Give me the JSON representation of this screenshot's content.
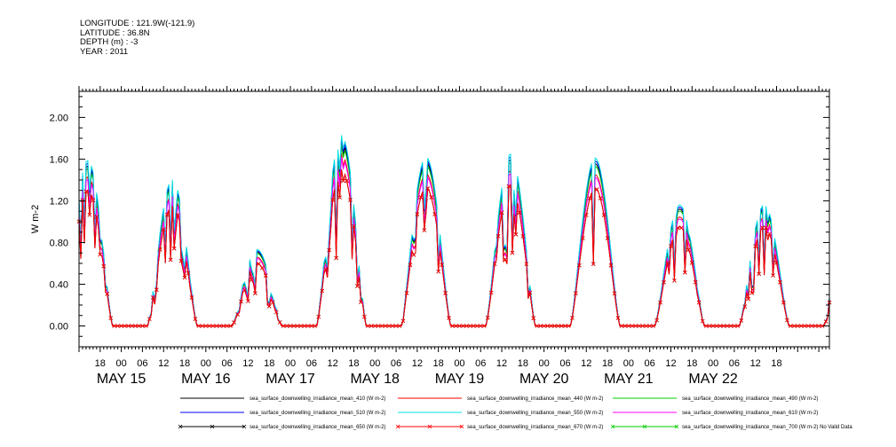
{
  "header": {
    "longitude": "LONGITUDE : 121.9W(-121.9)",
    "latitude": "LATITUDE : 36.8N",
    "depth": "DEPTH (m) : -3",
    "year": "YEAR : 2011"
  },
  "chart_data": {
    "type": "line",
    "ylabel": "W m-2",
    "ylim": [
      -0.2,
      2.25
    ],
    "yticks": [
      "0.00",
      "0.40",
      "0.80",
      "1.20",
      "1.60",
      "2.00"
    ],
    "ytick_values": [
      0,
      0.4,
      0.8,
      1.2,
      1.6,
      2.0
    ],
    "xlim_hours": [
      -6,
      207
    ],
    "hour_ticks": [
      "18",
      "00",
      "06",
      "12",
      "18",
      "00",
      "06",
      "12",
      "18",
      "00",
      "06",
      "12",
      "18",
      "00",
      "06",
      "12",
      "18",
      "00",
      "06",
      "12",
      "18",
      "00",
      "06",
      "12",
      "18",
      "00",
      "06",
      "12",
      "18",
      "00",
      "06",
      "12",
      "18"
    ],
    "date_labels": [
      "MAY 15",
      "MAY 16",
      "MAY 17",
      "MAY 18",
      "MAY 19",
      "MAY 20",
      "MAY 21",
      "MAY 22"
    ],
    "grid": false,
    "legend_placement": "bottom",
    "daily_peaks": [
      1.3,
      1.15,
      0.6,
      1.5,
      1.33,
      1.35,
      1.32,
      0.95
    ],
    "series": [
      {
        "name": "sea_surface_downwelling_irradiance_mean_410 (W m-2)",
        "color": "#000000",
        "marker": "none",
        "scale": 1.18
      },
      {
        "name": "sea_surface_downwelling_irradiance_mean_440 (W m-2)",
        "color": "#ff0000",
        "marker": "none",
        "scale": 1.1
      },
      {
        "name": "sea_surface_downwelling_irradiance_mean_490 (W m-2)",
        "color": "#00cc00",
        "marker": "none",
        "scale": 1.16
      },
      {
        "name": "sea_surface_downwelling_irradiance_mean_510 (W m-2)",
        "color": "#0000ff",
        "marker": "none",
        "scale": 1.2
      },
      {
        "name": "sea_surface_downwelling_irradiance_mean_550 (W m-2)",
        "color": "#00e0e0",
        "marker": "none",
        "scale": 1.22
      },
      {
        "name": "sea_surface_downwelling_irradiance_mean_610 (W m-2)",
        "color": "#ff00ff",
        "marker": "none",
        "scale": 1.08
      },
      {
        "name": "sea_surface_downwelling_irradiance_mean_650 (W m-2)",
        "color": "#000000",
        "marker": "x",
        "scale": 1.0
      },
      {
        "name": "sea_surface_downwelling_irradiance_mean_670 (W m-2)",
        "color": "#ff0000",
        "marker": "x",
        "scale": 1.0
      },
      {
        "name": "sea_surface_downwelling_irradiance_mean_700 (W m-2) No Valid Data",
        "color": "#00cc00",
        "marker": "x",
        "scale": 0
      }
    ]
  }
}
